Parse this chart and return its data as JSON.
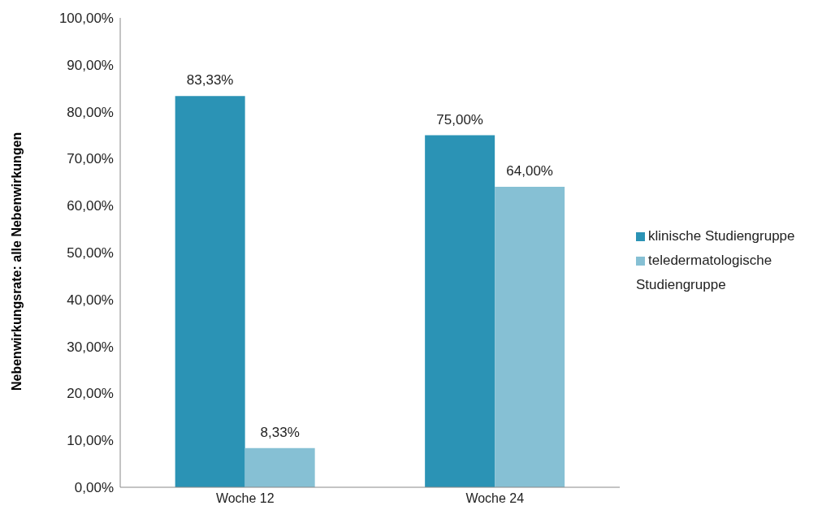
{
  "chart_data": {
    "type": "bar",
    "ylabel": "Nebenwirkungsrate: alle Nebenwirkungen",
    "categories": [
      "Woche 12",
      "Woche 24"
    ],
    "series": [
      {
        "name": "klinische Studiengruppe",
        "color": "#2b93b5",
        "values": [
          83.33,
          75
        ],
        "value_labels": [
          "83,33%",
          "75,00%"
        ]
      },
      {
        "name": "teledermatologische Studiengruppe",
        "color": "#86c0d4",
        "values": [
          8.33,
          64
        ],
        "value_labels": [
          "8,33%",
          "64,00%"
        ]
      }
    ],
    "ylim": [
      0,
      100
    ],
    "yticks": [
      {
        "value": 0,
        "label": "0,00%"
      },
      {
        "value": 10,
        "label": "10,00%"
      },
      {
        "value": 20,
        "label": "20,00%"
      },
      {
        "value": 30,
        "label": "30,00%"
      },
      {
        "value": 40,
        "label": "40,00%"
      },
      {
        "value": 50,
        "label": "50,00%"
      },
      {
        "value": 60,
        "label": "60,00%"
      },
      {
        "value": 70,
        "label": "70,00%"
      },
      {
        "value": 80,
        "label": "80,00%"
      },
      {
        "value": 90,
        "label": "90,00%"
      },
      {
        "value": 100,
        "label": "100,00%"
      }
    ],
    "grid": false,
    "legend": "right"
  }
}
